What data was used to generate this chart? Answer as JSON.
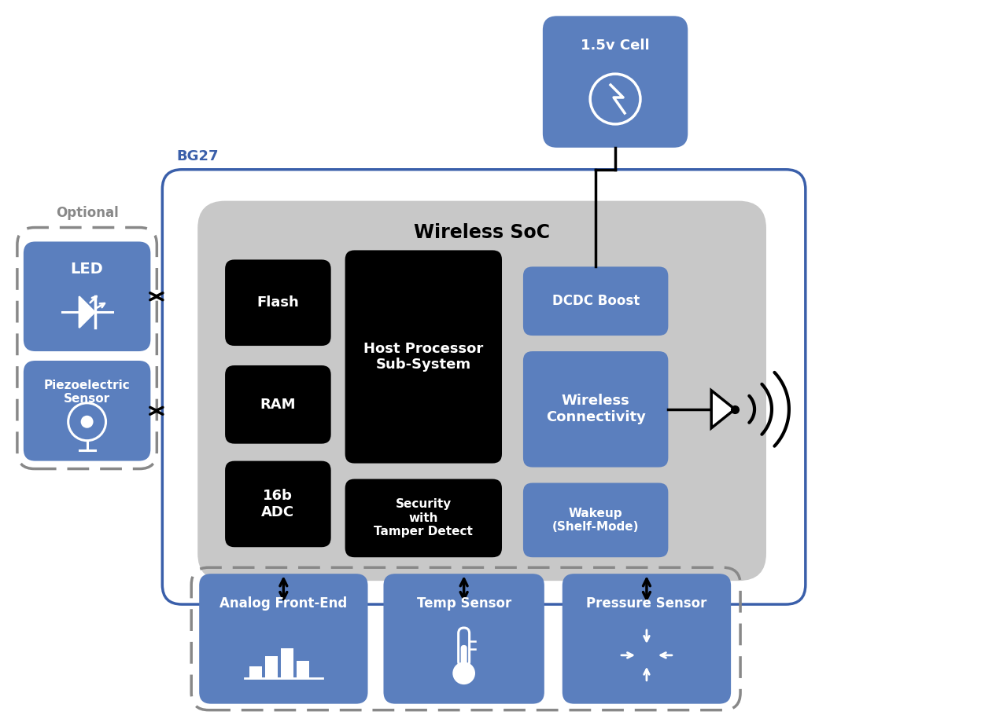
{
  "bg_color": "#ffffff",
  "blue_color": "#5b7fbe",
  "dark_blue_border": "#3a5faa",
  "black_color": "#000000",
  "gray_bg": "#c8c8c8",
  "white": "#ffffff",
  "dashed_gray": "#888888",
  "title": "Wireless SoC",
  "bg27_label": "BG27",
  "cell_label": "1.5v Cell",
  "led_label": "LED",
  "piezo_label": "Piezoelectric\nSensor",
  "optional_label": "Optional",
  "flash_label": "Flash",
  "ram_label": "RAM",
  "adc_label": "16b\nADC",
  "host_label": "Host Processor\nSub-System",
  "security_label": "Security\nwith\nTamper Detect",
  "dcdc_label": "DCDC Boost",
  "wireless_label": "Wireless\nConnectivity",
  "wakeup_label": "Wakeup\n(Shelf-Mode)",
  "afe_label": "Analog Front-End",
  "temp_label": "Temp Sensor",
  "pressure_label": "Pressure Sensor"
}
